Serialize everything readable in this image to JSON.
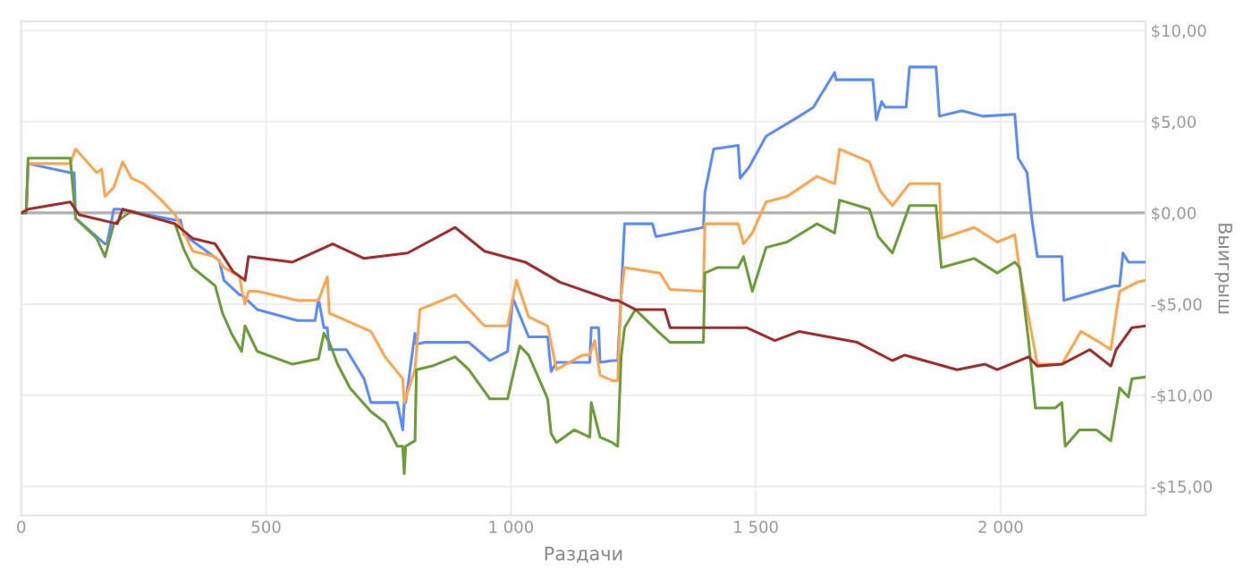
{
  "chart_data": {
    "type": "line",
    "xlabel": "Раздачи",
    "ylabel": "Выигрыш",
    "xlim": [
      0,
      2296
    ],
    "ylim": [
      -16.6,
      10.5
    ],
    "xticks": [
      0,
      500,
      {
        "value": 1000,
        "label": "1 000"
      },
      {
        "value": 1500,
        "label": "1 500"
      },
      {
        "value": 2000,
        "label": "2 000"
      }
    ],
    "yticks": [
      {
        "value": 10,
        "label": "$10,00"
      },
      {
        "value": 5,
        "label": "$5,00"
      },
      {
        "value": 0,
        "label": "$0,00"
      },
      {
        "value": -5,
        "label": "-$5,00"
      },
      {
        "value": -10,
        "label": "-$10,00"
      },
      {
        "value": -15,
        "label": "-$15,00"
      }
    ],
    "grid": true,
    "line_style": "solid",
    "ref_lines": [
      {
        "axis": "y",
        "value": 0,
        "color": "#b0b0b0"
      }
    ],
    "series": [
      {
        "color": "#5b8cff",
        "x": [
          0,
          10,
          14,
          100,
          108,
          111,
          171,
          175,
          189,
          200,
          314,
          325,
          332,
          404,
          414,
          446,
          450,
          482,
          564,
          600,
          607,
          618,
          625,
          629,
          664,
          700,
          714,
          768,
          779,
          782,
          785,
          804,
          807,
          825,
          914,
          957,
          993,
          1004,
          1036,
          1075,
          1082,
          1093,
          1161,
          1164,
          1179,
          1182,
          1207,
          1218,
          1225,
          1232,
          1250,
          1289,
          1296,
          1393,
          1396,
          1414,
          1464,
          1468,
          1486,
          1521,
          1589,
          1618,
          1629,
          1661,
          1664,
          1739,
          1746,
          1757,
          1764,
          1807,
          1814,
          1868,
          1875,
          1921,
          1964,
          2029,
          2036,
          2054,
          2064,
          2075,
          2125,
          2129,
          2232,
          2243,
          2250,
          2261,
          2296
        ],
        "values": [
          0,
          0,
          2.7,
          2.2,
          2.2,
          -0.3,
          -1.7,
          -1.7,
          0.2,
          0.2,
          -0.4,
          -0.4,
          -1.2,
          -2.6,
          -3.7,
          -4.5,
          -4.5,
          -5.3,
          -5.9,
          -5.9,
          -4.7,
          -6.3,
          -6.3,
          -7.5,
          -7.5,
          -9.1,
          -10.4,
          -10.4,
          -11.9,
          -10.4,
          -10.4,
          -6.6,
          -7.2,
          -7.1,
          -7.1,
          -8.1,
          -7.6,
          -4.7,
          -6.8,
          -6.8,
          -8.7,
          -8.2,
          -8.2,
          -6.3,
          -6.3,
          -8.2,
          -8.1,
          -8.1,
          -4.5,
          -0.6,
          -0.6,
          -0.6,
          -1.3,
          -0.8,
          1.1,
          3.5,
          3.7,
          1.9,
          2.5,
          4.2,
          5.3,
          5.8,
          6.3,
          7.7,
          7.3,
          7.3,
          5.1,
          6.1,
          5.8,
          5.8,
          8.0,
          8.0,
          5.3,
          5.6,
          5.3,
          5.4,
          3.0,
          2.2,
          -0.4,
          -2.4,
          -2.4,
          -4.8,
          -4.0,
          -4.0,
          -2.2,
          -2.7,
          -2.7
        ]
      },
      {
        "color": "#ffa54f",
        "x": [
          0,
          10,
          14,
          100,
          111,
          154,
          164,
          171,
          189,
          207,
          225,
          250,
          286,
          314,
          350,
          396,
          414,
          446,
          450,
          457,
          464,
          482,
          564,
          607,
          625,
          629,
          671,
          714,
          743,
          779,
          782,
          804,
          814,
          886,
          946,
          993,
          1011,
          1036,
          1075,
          1093,
          1146,
          1161,
          1171,
          1182,
          1207,
          1218,
          1225,
          1232,
          1304,
          1325,
          1393,
          1396,
          1464,
          1475,
          1493,
          1521,
          1564,
          1625,
          1661,
          1671,
          1732,
          1754,
          1779,
          1814,
          1875,
          1879,
          1946,
          1993,
          2029,
          2039,
          2057,
          2075,
          2125,
          2164,
          2196,
          2225,
          2243,
          2279,
          2296
        ],
        "values": [
          0,
          0,
          2.7,
          2.7,
          3.5,
          2.2,
          2.4,
          0.9,
          1.4,
          2.8,
          1.9,
          1.6,
          0.7,
          -0.1,
          -2.1,
          -2.4,
          -3.0,
          -3.5,
          -4.2,
          -5.0,
          -4.3,
          -4.3,
          -4.8,
          -4.8,
          -3.5,
          -5.5,
          -6.0,
          -6.5,
          -7.9,
          -9.1,
          -10.4,
          -8.6,
          -5.3,
          -4.5,
          -6.2,
          -6.2,
          -3.7,
          -5.7,
          -6.2,
          -8.6,
          -7.8,
          -7.8,
          -7.0,
          -8.9,
          -9.2,
          -9.2,
          -4.5,
          -3.0,
          -3.3,
          -4.2,
          -4.3,
          -0.6,
          -0.6,
          -1.7,
          -1.1,
          0.6,
          0.9,
          2.0,
          1.6,
          3.5,
          2.8,
          1.2,
          0.4,
          1.6,
          1.6,
          -1.4,
          -0.8,
          -1.6,
          -1.2,
          -3.2,
          -5.7,
          -8.3,
          -8.3,
          -6.5,
          -7.0,
          -7.5,
          -4.3,
          -3.8,
          -3.7
        ]
      },
      {
        "color": "#6b9e3a",
        "x": [
          0,
          10,
          14,
          100,
          111,
          154,
          171,
          189,
          225,
          314,
          332,
          350,
          396,
          411,
          429,
          450,
          457,
          482,
          554,
          607,
          618,
          629,
          646,
          671,
          714,
          743,
          768,
          779,
          782,
          785,
          804,
          807,
          839,
          886,
          914,
          957,
          993,
          1018,
          1036,
          1075,
          1082,
          1093,
          1129,
          1161,
          1164,
          1182,
          1207,
          1218,
          1225,
          1232,
          1254,
          1304,
          1325,
          1393,
          1396,
          1421,
          1464,
          1475,
          1493,
          1521,
          1564,
          1625,
          1661,
          1671,
          1732,
          1750,
          1779,
          1814,
          1868,
          1879,
          1946,
          1993,
          2029,
          2039,
          2057,
          2071,
          2111,
          2125,
          2132,
          2161,
          2196,
          2225,
          2243,
          2261,
          2268,
          2296
        ],
        "values": [
          0,
          0,
          3.0,
          3.0,
          -0.3,
          -1.4,
          -2.4,
          -0.6,
          0.1,
          -0.6,
          -2.0,
          -3.0,
          -4.0,
          -5.5,
          -6.6,
          -7.6,
          -6.2,
          -7.6,
          -8.3,
          -8.0,
          -6.6,
          -7.1,
          -8.3,
          -9.6,
          -10.9,
          -11.5,
          -12.8,
          -12.8,
          -14.3,
          -12.8,
          -12.5,
          -8.6,
          -8.4,
          -7.9,
          -8.6,
          -10.2,
          -10.2,
          -7.3,
          -7.8,
          -10.2,
          -12.1,
          -12.6,
          -11.9,
          -12.3,
          -10.4,
          -12.3,
          -12.6,
          -12.8,
          -7.9,
          -6.3,
          -5.3,
          -6.6,
          -7.1,
          -7.1,
          -3.3,
          -3.0,
          -3.0,
          -2.4,
          -4.3,
          -1.9,
          -1.6,
          -0.6,
          -1.1,
          0.7,
          0.2,
          -1.3,
          -2.2,
          0.4,
          0.4,
          -3.0,
          -2.5,
          -3.3,
          -2.7,
          -3.0,
          -7.0,
          -10.7,
          -10.7,
          -10.4,
          -12.8,
          -11.9,
          -11.9,
          -12.5,
          -9.6,
          -10.1,
          -9.1,
          -9.0
        ]
      },
      {
        "color": "#a02c2c",
        "x": [
          0,
          14,
          100,
          118,
          196,
          207,
          314,
          350,
          396,
          432,
          457,
          464,
          554,
          636,
          700,
          789,
          886,
          946,
          1029,
          1100,
          1207,
          1218,
          1254,
          1314,
          1325,
          1482,
          1539,
          1589,
          1707,
          1779,
          1804,
          1911,
          1968,
          1993,
          2057,
          2075,
          2125,
          2182,
          2225,
          2236,
          2268,
          2296
        ],
        "values": [
          0,
          0.2,
          0.6,
          -0.1,
          -0.6,
          0.2,
          -0.6,
          -1.4,
          -1.7,
          -3.2,
          -3.7,
          -2.4,
          -2.7,
          -1.7,
          -2.5,
          -2.2,
          -0.8,
          -2.1,
          -2.7,
          -3.8,
          -4.8,
          -4.8,
          -5.3,
          -5.3,
          -6.3,
          -6.3,
          -7.0,
          -6.5,
          -7.1,
          -8.1,
          -7.8,
          -8.6,
          -8.3,
          -8.6,
          -7.9,
          -8.4,
          -8.3,
          -7.5,
          -8.4,
          -7.5,
          -6.3,
          -6.2
        ]
      }
    ]
  }
}
